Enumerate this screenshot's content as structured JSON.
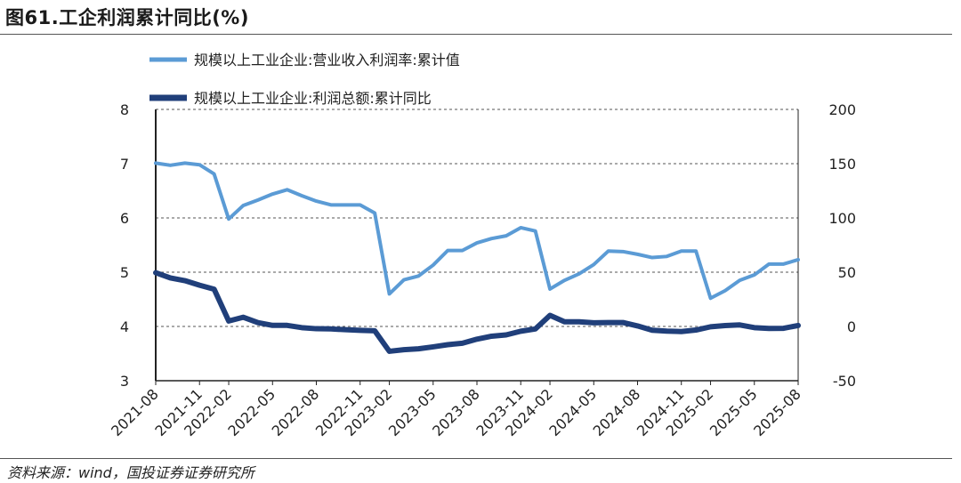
{
  "figure": {
    "title": "图61.工企利润累计同比(%)",
    "source": "资料来源：wind，国投证券证券研究所"
  },
  "chart_data": {
    "type": "line",
    "title": "图61.工企利润累计同比(%)",
    "categories": [
      "2021-08",
      "2021-09",
      "2021-10",
      "2021-11",
      "2021-12",
      "2022-02",
      "2022-03",
      "2022-04",
      "2022-05",
      "2022-06",
      "2022-07",
      "2022-08",
      "2022-09",
      "2022-10",
      "2022-11",
      "2022-12",
      "2023-02",
      "2023-03",
      "2023-04",
      "2023-05",
      "2023-06",
      "2023-07",
      "2023-08",
      "2023-09",
      "2023-10",
      "2023-11",
      "2023-12",
      "2024-02",
      "2024-03",
      "2024-04",
      "2024-05",
      "2024-06",
      "2024-07",
      "2024-08",
      "2024-09",
      "2024-10",
      "2024-11",
      "2024-12",
      "2025-02",
      "2025-03",
      "2025-04",
      "2025-05",
      "2025-06",
      "2025-07",
      "2025-08"
    ],
    "x_tick_labels": [
      "2021-08",
      "2021-11",
      "2022-02",
      "2022-05",
      "2022-08",
      "2022-11",
      "2023-02",
      "2023-05",
      "2023-08",
      "2023-11",
      "2024-02",
      "2024-05",
      "2024-08",
      "2024-11",
      "2025-02",
      "2025-05",
      "2025-08"
    ],
    "left_axis": {
      "ylim": [
        3,
        8
      ],
      "ticks": [
        "3",
        "4",
        "5",
        "6",
        "7",
        "8"
      ]
    },
    "right_axis": {
      "ylim": [
        -50,
        200
      ],
      "ticks": [
        "-50",
        "0",
        "50",
        "100",
        "150",
        "200"
      ]
    },
    "grid": true,
    "series": [
      {
        "name": "规模以上工业企业:营业收入利润率:累计值",
        "axis": "left",
        "color": "#5b9bd5",
        "values": [
          7.01,
          6.97,
          7.01,
          6.98,
          6.81,
          5.98,
          6.23,
          6.33,
          6.44,
          6.52,
          6.41,
          6.31,
          6.24,
          6.24,
          6.24,
          6.09,
          4.6,
          4.86,
          4.93,
          5.13,
          5.4,
          5.4,
          5.54,
          5.62,
          5.67,
          5.82,
          5.76,
          4.69,
          4.85,
          4.97,
          5.14,
          5.39,
          5.38,
          5.33,
          5.27,
          5.29,
          5.39,
          5.39,
          4.52,
          4.66,
          4.85,
          4.95,
          5.15,
          5.15,
          5.23
        ]
      },
      {
        "name": "规模以上工业企业:利润总额:累计同比",
        "axis": "right",
        "color": "#203f7a",
        "values": [
          49.5,
          44.7,
          42.2,
          38.0,
          34.3,
          5.0,
          8.5,
          3.5,
          1.0,
          1.0,
          -1.1,
          -2.1,
          -2.3,
          -3.0,
          -3.6,
          -4.0,
          -22.9,
          -21.4,
          -20.6,
          -18.8,
          -16.8,
          -15.5,
          -11.7,
          -9.0,
          -7.8,
          -4.4,
          -2.3,
          10.2,
          4.3,
          4.3,
          3.4,
          3.6,
          3.6,
          0.5,
          -3.5,
          -4.3,
          -4.7,
          -3.3,
          -0.3,
          0.8,
          1.4,
          -1.1,
          -1.8,
          -1.7,
          0.9
        ]
      }
    ]
  },
  "legend": {
    "series0": "规模以上工业企业:营业收入利润率:累计值",
    "series1": "规模以上工业企业:利润总额:累计同比"
  }
}
